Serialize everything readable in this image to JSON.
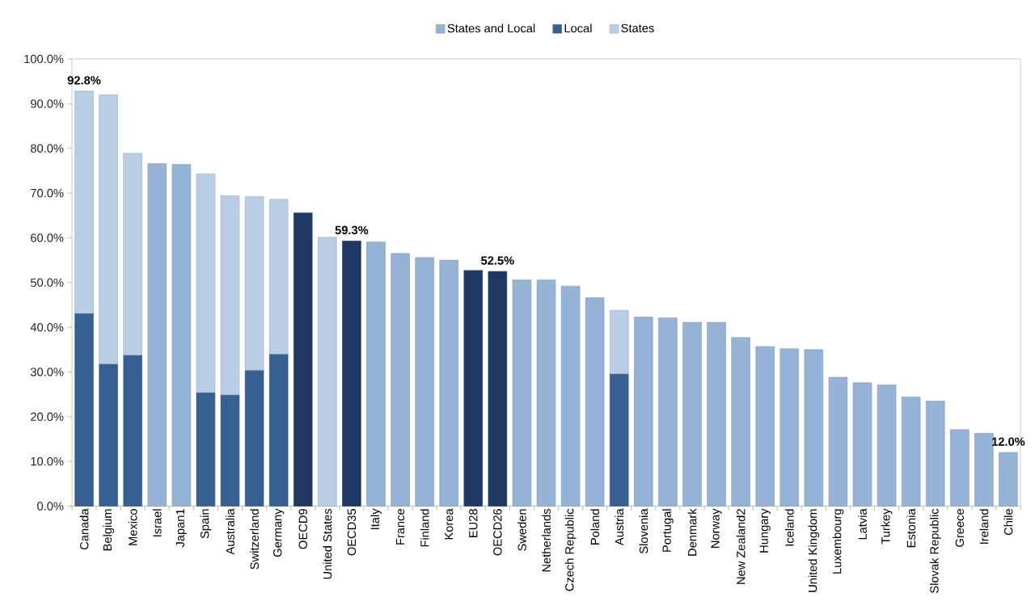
{
  "chart_data": {
    "type": "bar",
    "stacked": true,
    "legend": "top",
    "categories": [
      "Canada",
      "Belgium",
      "Mexico",
      "Israel",
      "Japan1",
      "Spain",
      "Australia",
      "Switzerland",
      "Germany",
      "OECD9",
      "United States",
      "OECD35",
      "Italy",
      "France",
      "Finland",
      "Korea",
      "EU28",
      "OECD26",
      "Sweden",
      "Netherlands",
      "Czech Republic",
      "Poland",
      "Austria",
      "Slovenia",
      "Portugal",
      "Denmark",
      "Norway",
      "New Zealand2",
      "Hungary",
      "Iceland",
      "United Kingdom",
      "Luxembourg",
      "Latvia",
      "Turkey",
      "Estonia",
      "Slovak Republic",
      "Greece",
      "Ireland",
      "Chile"
    ],
    "series": [
      {
        "name": "States and Local",
        "color": "#95b3d7",
        "values": [
          null,
          null,
          null,
          76.6,
          76.4,
          null,
          null,
          null,
          null,
          null,
          null,
          null,
          59.1,
          56.5,
          55.6,
          55.0,
          null,
          null,
          50.6,
          50.6,
          49.2,
          46.6,
          null,
          42.3,
          42.1,
          41.1,
          41.1,
          37.7,
          35.7,
          35.2,
          35.0,
          28.8,
          27.6,
          27.1,
          24.4,
          23.5,
          17.1,
          16.3,
          12.0
        ]
      },
      {
        "name": "Local",
        "color": "#376092",
        "values": [
          43.1,
          31.8,
          33.8,
          null,
          null,
          25.4,
          24.9,
          30.4,
          34.0,
          null,
          null,
          null,
          null,
          null,
          null,
          null,
          null,
          null,
          null,
          null,
          null,
          null,
          29.6,
          null,
          null,
          null,
          null,
          null,
          null,
          null,
          null,
          null,
          null,
          null,
          null,
          null,
          null,
          null,
          null
        ]
      },
      {
        "name": "States",
        "color": "#b9cde5",
        "values": [
          49.7,
          60.2,
          45.1,
          null,
          null,
          48.9,
          44.5,
          38.8,
          34.6,
          null,
          60.1,
          null,
          null,
          null,
          null,
          null,
          null,
          null,
          null,
          null,
          null,
          null,
          14.2,
          null,
          null,
          null,
          null,
          null,
          null,
          null,
          null,
          null,
          null,
          null,
          null,
          null,
          null,
          null,
          null
        ]
      },
      {
        "color": "#1f3864",
        "values": [
          null,
          null,
          null,
          null,
          null,
          null,
          null,
          null,
          null,
          65.6,
          null,
          59.3,
          null,
          null,
          null,
          null,
          52.7,
          52.5,
          null,
          null,
          null,
          null,
          null,
          null,
          null,
          null,
          null,
          null,
          null,
          null,
          null,
          null,
          null,
          null,
          null,
          null,
          null,
          null,
          null
        ]
      }
    ],
    "totals": [
      "92.8%",
      null,
      null,
      null,
      null,
      null,
      null,
      null,
      null,
      null,
      null,
      "59.3%",
      null,
      null,
      null,
      null,
      null,
      "52.5%",
      null,
      null,
      null,
      null,
      null,
      null,
      null,
      null,
      null,
      null,
      null,
      null,
      null,
      null,
      null,
      null,
      null,
      null,
      null,
      null,
      "12.0%"
    ],
    "ylim": [
      0,
      100
    ],
    "yticks": [
      {
        "value": 0,
        "label": "0.0%"
      },
      {
        "value": 10,
        "label": "10.0%"
      },
      {
        "value": 20,
        "label": "20.0%"
      },
      {
        "value": 30,
        "label": "30.0%"
      },
      {
        "value": 40,
        "label": "40.0%"
      },
      {
        "value": 50,
        "label": "50.0%"
      },
      {
        "value": 60,
        "label": "60.0%"
      },
      {
        "value": 70,
        "label": "70.0%"
      },
      {
        "value": 80,
        "label": "80.0%"
      },
      {
        "value": 90,
        "label": "90.0%"
      },
      {
        "value": 100,
        "label": "100.0%"
      }
    ]
  }
}
